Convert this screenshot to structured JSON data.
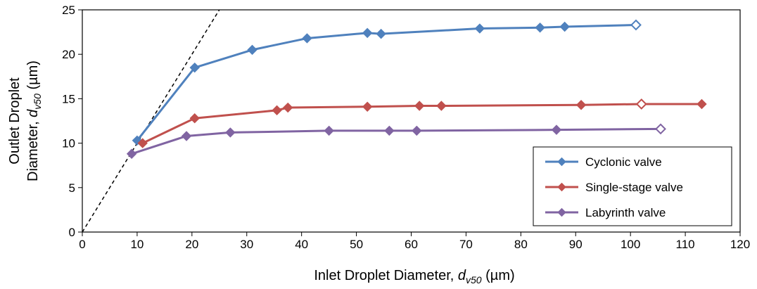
{
  "chart_data": {
    "type": "line",
    "xlabel": {
      "prefix": "Inlet Droplet Diameter, ",
      "symbol": "d",
      "subscript": "v50",
      "unit": " (µm)"
    },
    "ylabel": {
      "line1": "Outlet Droplet",
      "line2_prefix": "Diameter, ",
      "symbol": "d",
      "subscript": "v50",
      "unit": " (µm)"
    },
    "xlim": [
      0,
      120
    ],
    "ylim": [
      0,
      25
    ],
    "xticks": [
      "0",
      "10",
      "20",
      "30",
      "40",
      "50",
      "60",
      "70",
      "80",
      "90",
      "100",
      "110",
      "120"
    ],
    "yticks": [
      "0",
      "5",
      "10",
      "15",
      "20",
      "25"
    ],
    "grid": false,
    "legend_position": "bottom-right",
    "reference_line": {
      "style": "dashed",
      "from": [
        0,
        0
      ],
      "to": [
        25,
        25
      ]
    },
    "series": [
      {
        "name": "Cyclonic valve",
        "color": "#4F81BD",
        "points": [
          {
            "x": 10,
            "y": 10.3,
            "filled": true
          },
          {
            "x": 20.5,
            "y": 18.5,
            "filled": true
          },
          {
            "x": 31,
            "y": 20.5,
            "filled": true
          },
          {
            "x": 41,
            "y": 21.8,
            "filled": true
          },
          {
            "x": 52,
            "y": 22.4,
            "filled": true
          },
          {
            "x": 54.5,
            "y": 22.3,
            "filled": true
          },
          {
            "x": 72.5,
            "y": 22.9,
            "filled": true
          },
          {
            "x": 83.5,
            "y": 23.0,
            "filled": true
          },
          {
            "x": 88,
            "y": 23.1,
            "filled": true
          },
          {
            "x": 101,
            "y": 23.3,
            "filled": false
          }
        ]
      },
      {
        "name": "Single-stage valve",
        "color": "#C0504D",
        "points": [
          {
            "x": 11,
            "y": 10.0,
            "filled": true
          },
          {
            "x": 20.5,
            "y": 12.8,
            "filled": true
          },
          {
            "x": 35.5,
            "y": 13.7,
            "filled": true
          },
          {
            "x": 37.5,
            "y": 14.0,
            "filled": true
          },
          {
            "x": 52,
            "y": 14.1,
            "filled": true
          },
          {
            "x": 61.5,
            "y": 14.2,
            "filled": true
          },
          {
            "x": 65.5,
            "y": 14.2,
            "filled": true
          },
          {
            "x": 91,
            "y": 14.3,
            "filled": true
          },
          {
            "x": 102,
            "y": 14.4,
            "filled": false
          },
          {
            "x": 113,
            "y": 14.4,
            "filled": true
          }
        ]
      },
      {
        "name": "Labyrinth valve",
        "color": "#8064A2",
        "points": [
          {
            "x": 9,
            "y": 8.8,
            "filled": true
          },
          {
            "x": 19,
            "y": 10.8,
            "filled": true
          },
          {
            "x": 27,
            "y": 11.2,
            "filled": true
          },
          {
            "x": 45,
            "y": 11.4,
            "filled": true
          },
          {
            "x": 56,
            "y": 11.4,
            "filled": true
          },
          {
            "x": 61,
            "y": 11.4,
            "filled": true
          },
          {
            "x": 86.5,
            "y": 11.5,
            "filled": true
          },
          {
            "x": 105.5,
            "y": 11.6,
            "filled": false
          }
        ]
      }
    ]
  }
}
